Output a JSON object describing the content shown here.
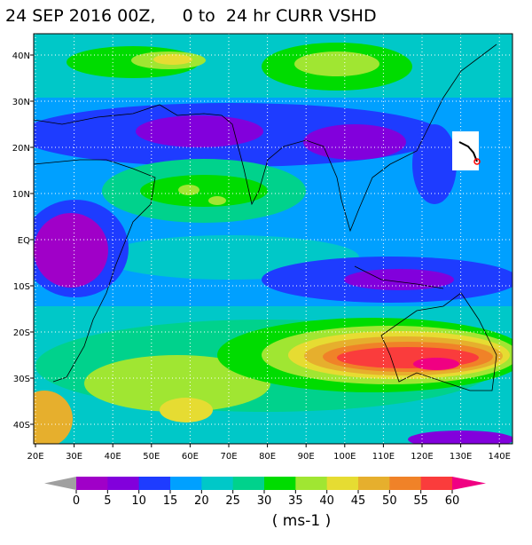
{
  "title": "24 SEP 2016 00Z,     0 to  24 hr CURR VSHD",
  "map": {
    "lat_labels": [
      "40N",
      "30N",
      "20N",
      "10N",
      "EQ",
      "10S",
      "20S",
      "30S",
      "40S"
    ],
    "lon_labels": [
      "20E",
      "30E",
      "40E",
      "50E",
      "60E",
      "70E",
      "80E",
      "90E",
      "100E",
      "110E",
      "120E",
      "130E",
      "140E"
    ]
  },
  "colorbar": {
    "levels": [
      0,
      5,
      10,
      15,
      20,
      25,
      30,
      35,
      40,
      45,
      50,
      55,
      60
    ],
    "unit": "( ms-1 )"
  }
}
